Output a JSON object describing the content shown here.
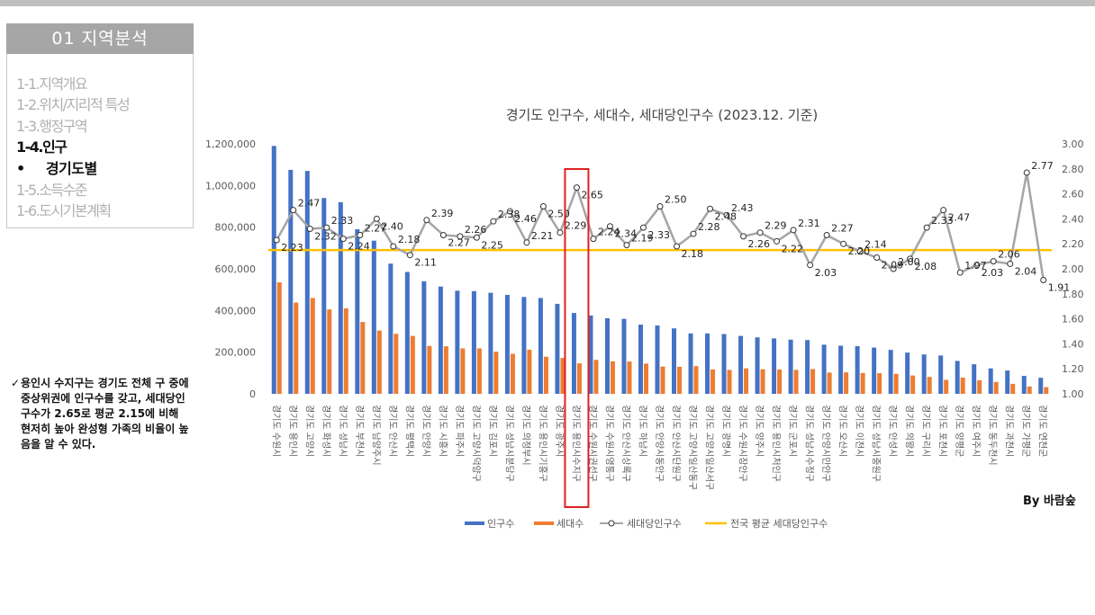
{
  "section": {
    "title": "01 지역분석"
  },
  "nav": {
    "items": [
      {
        "label": "1-1.지역개요"
      },
      {
        "label": "1-2.위치/지리적 특성"
      },
      {
        "label": "1-3.행정구역"
      },
      {
        "label": "1-4.인구"
      },
      {
        "label": "경기도별"
      },
      {
        "label": "1-5.소득수준"
      },
      {
        "label": "1-6.도시기본계획"
      }
    ],
    "bullet": "•"
  },
  "note": {
    "check": "✓",
    "text": "용인시 수지구는 경기도 전체 구 중에 중상위권에 인구수를 갖고, 세대당인구수가 2.65로 평균 2.15에 비해 현저히 높아 완성형 가족의 비율이 높음을 알 수 있다."
  },
  "author": "By 바람숲",
  "colors": {
    "population": "#4472C4",
    "households": "#ED7D31",
    "per_household": "#A5A5A5",
    "national_avg": "#FFC000",
    "highlight": "#E02020"
  },
  "chart_data": {
    "type": "bar",
    "title": "경기도 인구수, 세대수, 세대당인구수 (2023.12. 기준)",
    "categories": [
      "경기도 수원시",
      "경기도 용인시",
      "경기도 고양시",
      "경기도 화성시",
      "경기도 성남시",
      "경기도 부천시",
      "경기도 남양주시",
      "경기도 안산시",
      "경기도 평택시",
      "경기도 안양시",
      "경기도 시흥시",
      "경기도 파주시",
      "경기도 고양시덕양구",
      "경기도 김포시",
      "경기도 성남시분당구",
      "경기도 의정부시",
      "경기도 용인시기흥구",
      "경기도 광주시",
      "경기도 용인시수지구",
      "경기도 수원시권선구",
      "경기도 수원시영통구",
      "경기도 안산시상록구",
      "경기도 하남시",
      "경기도 안양시동안구",
      "경기도 안산시단원구",
      "경기도 고양시일산동구",
      "경기도 고양시일산서구",
      "경기도 광명시",
      "경기도 수원시장안구",
      "경기도 양주시",
      "경기도 용인시처인구",
      "경기도 군포시",
      "경기도 성남시수정구",
      "경기도 안양시만안구",
      "경기도 오산시",
      "경기도 이천시",
      "경기도 성남시중원구",
      "경기도 안성시",
      "경기도 의왕시",
      "경기도 구리시",
      "경기도 포천시",
      "경기도 양평군",
      "경기도 여주시",
      "경기도 동두천시",
      "경기도 과천시",
      "경기도 가평군",
      "경기도 연천군"
    ],
    "y_left": {
      "ticks": [
        "0",
        "200,000",
        "400,000",
        "600,000",
        "800,000",
        "1,000,000",
        "1,200,000"
      ],
      "ylim": [
        0,
        1200000
      ]
    },
    "y_right": {
      "ticks": [
        "1.00",
        "1.20",
        "1.40",
        "1.60",
        "1.80",
        "2.00",
        "2.20",
        "2.40",
        "2.60",
        "2.80",
        "3.00"
      ],
      "ylim": [
        1.0,
        3.0
      ]
    },
    "series": [
      {
        "name": "인구수",
        "kind": "bar",
        "axis": "left",
        "values": [
          1190000,
          1075000,
          1070000,
          940000,
          920000,
          790000,
          735000,
          625000,
          585000,
          540000,
          515000,
          495000,
          493000,
          485000,
          475000,
          465000,
          460000,
          432000,
          388000,
          376000,
          363000,
          360000,
          332000,
          328000,
          314000,
          290000,
          290000,
          287000,
          278000,
          271000,
          266000,
          260000,
          258000,
          236000,
          231000,
          229000,
          222000,
          211000,
          198000,
          189000,
          184000,
          158000,
          142000,
          122000,
          112000,
          86000,
          77000
        ]
      },
      {
        "name": "세대수",
        "kind": "bar",
        "axis": "left",
        "values": [
          535000,
          438000,
          460000,
          405000,
          410000,
          345000,
          304000,
          288000,
          278000,
          230000,
          228000,
          218000,
          218000,
          202000,
          192000,
          212000,
          178000,
          172000,
          146000,
          163000,
          156000,
          155000,
          145000,
          131000,
          130000,
          133000,
          117000,
          115000,
          122000,
          118000,
          117000,
          115000,
          119000,
          102000,
          103000,
          100000,
          99000,
          96000,
          88000,
          81000,
          67000,
          78000,
          65000,
          57000,
          48000,
          35000,
          32000
        ]
      },
      {
        "name": "세대당인구수",
        "kind": "line",
        "axis": "right",
        "values": [
          2.23,
          2.47,
          2.32,
          2.33,
          2.24,
          2.27,
          2.4,
          2.18,
          2.11,
          2.39,
          2.27,
          2.26,
          2.25,
          2.38,
          2.46,
          2.21,
          2.5,
          2.29,
          2.65,
          2.24,
          2.34,
          2.19,
          2.33,
          2.5,
          2.18,
          2.28,
          2.48,
          2.43,
          2.26,
          2.29,
          2.22,
          2.31,
          2.03,
          2.27,
          2.2,
          2.14,
          2.09,
          2.0,
          2.08,
          2.33,
          2.47,
          1.97,
          2.03,
          2.06,
          2.04,
          2.77,
          1.91
        ],
        "labels": [
          "2.23",
          "2.47",
          "2.32",
          "2.33",
          "2.24",
          "2.27",
          "2.40",
          "2.18",
          "2.11",
          "2.39",
          "2.27",
          "2.26",
          "2.25",
          "2.38",
          "2.46",
          "2.21",
          "2.50",
          "2.29",
          "2.65",
          "2.24",
          "2.34",
          "2.19",
          "2.33",
          "2.50",
          "2.18",
          "2.28",
          "2.48",
          "2.43",
          "2.26",
          "2.29",
          "2.22",
          "2.31",
          "2.03",
          "2.27",
          "2.20",
          "2.14",
          "2.09",
          "2.00",
          "2.08",
          "2.33",
          "2.47",
          "1.97",
          "2.03",
          "2.06",
          "2.04",
          "2.77",
          "1.91"
        ]
      },
      {
        "name": "전국 평균 세대당인구수",
        "kind": "refline",
        "axis": "right",
        "value": 2.15
      }
    ],
    "highlight_category": "경기도 용인시수지구",
    "legend_position": "bottom",
    "grid": false
  }
}
